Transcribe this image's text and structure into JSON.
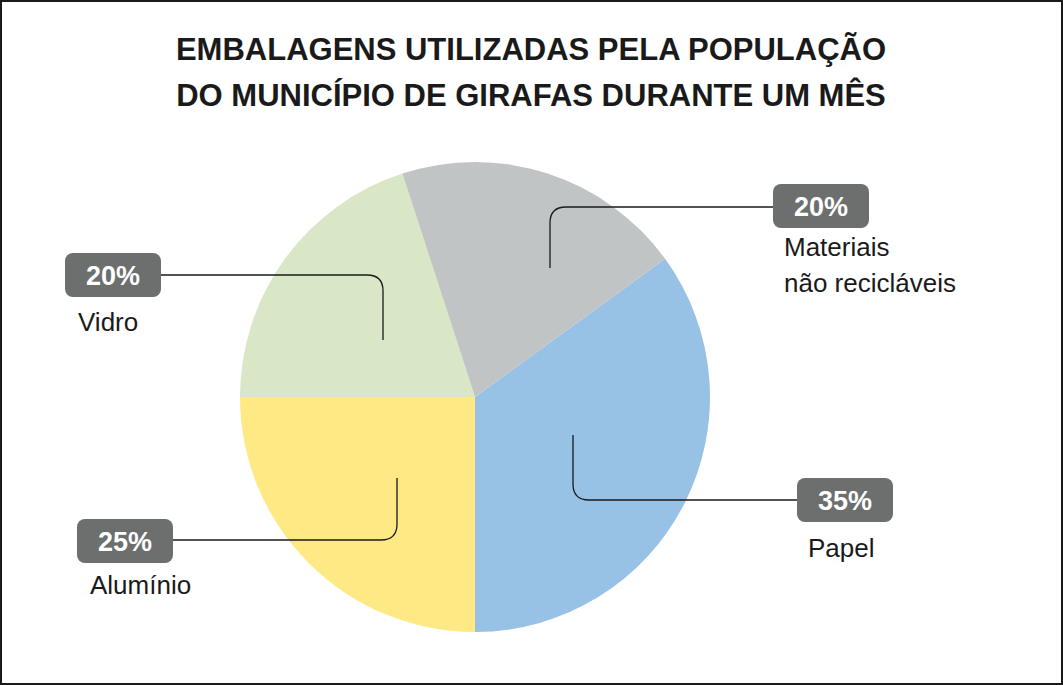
{
  "chart_data": {
    "type": "pie",
    "title": "EMBALAGENS UTILIZADAS PELA POPULAÇÃO\nDO MUNICÍPIO DE GIRAFAS DURANTE UM MÊS",
    "categories": [
      "Papel",
      "Alumínio",
      "Vidro",
      "Materiais\nnão recicláveis"
    ],
    "values": [
      35,
      25,
      20,
      20
    ],
    "value_labels": [
      "35%",
      "25%",
      "20%",
      "20%"
    ],
    "colors": [
      "#98c1e6",
      "#fee985",
      "#d9e7c6",
      "#c0c4c5"
    ],
    "data_labels": true
  }
}
